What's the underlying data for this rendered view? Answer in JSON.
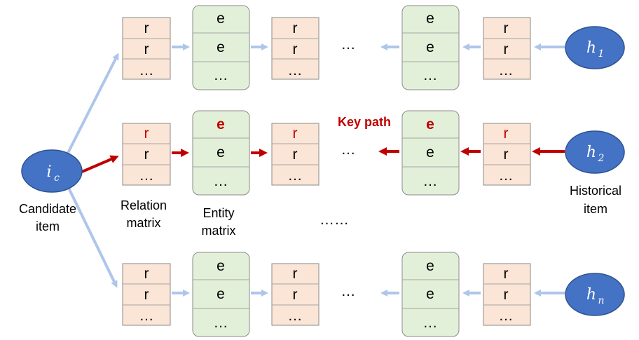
{
  "relation_cells": [
    "r",
    "r",
    "…"
  ],
  "entity_cells": [
    "e",
    "e",
    "…"
  ],
  "rows_ellipsis": "…",
  "middle_ellipsis": "……",
  "key_path_label": "Key path",
  "candidate": {
    "symbol": "i",
    "subscript": "c",
    "label_line1": "Candidate",
    "label_line2": "item"
  },
  "historical": [
    {
      "symbol": "h",
      "subscript": "1"
    },
    {
      "symbol": "h",
      "subscript": "2"
    },
    {
      "symbol": "h",
      "subscript": "n"
    }
  ],
  "historical_label_line1": "Historical",
  "historical_label_line2": "item",
  "relation_label_line1": "Relation",
  "relation_label_line2": "matrix",
  "entity_label_line1": "Entity",
  "entity_label_line2": "matrix",
  "colors": {
    "relation_fill": "#fbe5d6",
    "entity_fill": "#e2f0d9",
    "node_fill": "#4472c4",
    "arrow_normal": "#aec6ea",
    "arrow_key": "#c00000",
    "key_text": "#c00000"
  }
}
